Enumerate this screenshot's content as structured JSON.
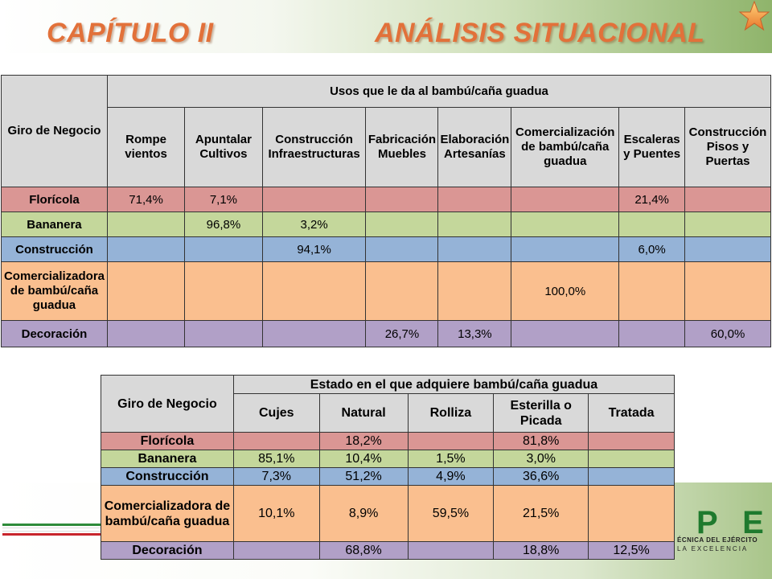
{
  "header": {
    "title_left": "CAPÍTULO II",
    "title_right": "ANÁLISIS SITUACIONAL"
  },
  "colors": {
    "title": "#e2713a",
    "floricola": "#da9694",
    "bananera": "#c4d79b",
    "construccion": "#95b3d7",
    "comercializadora": "#fabf8f",
    "decoracion": "#b1a0c7",
    "header_gray": "#d9d9d9"
  },
  "table_usos": {
    "corner_header": "Giro de Negocio",
    "group_header": "Usos que le da al bambú/caña guadua",
    "columns": [
      "Rompe vientos",
      "Apuntalar Cultivos",
      "Construcción Infraestructuras",
      "Fabricación Muebles",
      "Elaboración Artesanías",
      "Comercialización de bambú/caña guadua",
      "Escaleras y Puentes",
      "Construcción Pisos y Puertas"
    ],
    "rows": [
      {
        "label": "Florícola",
        "cells": [
          "71,4%",
          "7,1%",
          "",
          "",
          "",
          "",
          "21,4%",
          ""
        ]
      },
      {
        "label": "Bananera",
        "cells": [
          "",
          "96,8%",
          "3,2%",
          "",
          "",
          "",
          "",
          ""
        ]
      },
      {
        "label": "Construcción",
        "cells": [
          "",
          "",
          "94,1%",
          "",
          "",
          "",
          "6,0%",
          ""
        ]
      },
      {
        "label": "Comercializadora de bambú/caña guadua",
        "cells": [
          "",
          "",
          "",
          "",
          "",
          "100,0%",
          "",
          ""
        ]
      },
      {
        "label": "Decoración",
        "cells": [
          "",
          "",
          "",
          "26,7%",
          "13,3%",
          "",
          "",
          "60,0%"
        ]
      }
    ]
  },
  "table_estado": {
    "corner_header": "Giro de Negocio",
    "group_header": "Estado en el que adquiere bambú/caña guadua",
    "columns": [
      "Cujes",
      "Natural",
      "Rolliza",
      "Esterilla o Picada",
      "Tratada"
    ],
    "rows": [
      {
        "label": "Florícola",
        "cells": [
          "",
          "18,2%",
          "",
          "81,8%",
          ""
        ]
      },
      {
        "label": "Bananera",
        "cells": [
          "85,1%",
          "10,4%",
          "1,5%",
          "3,0%",
          ""
        ]
      },
      {
        "label": "Construcción",
        "cells": [
          "7,3%",
          "51,2%",
          "4,9%",
          "36,6%",
          ""
        ]
      },
      {
        "label": "Comercializadora de bambú/caña guadua",
        "cells": [
          "10,1%",
          "8,9%",
          "59,5%",
          "21,5%",
          ""
        ]
      },
      {
        "label": "Decoración",
        "cells": [
          "",
          "68,8%",
          "",
          "18,8%",
          "12,5%"
        ]
      }
    ]
  },
  "logo": {
    "mark": "P E",
    "line1": "ÉCNICA DEL EJÉRCITO",
    "line2": "LA EXCELENCIA"
  }
}
